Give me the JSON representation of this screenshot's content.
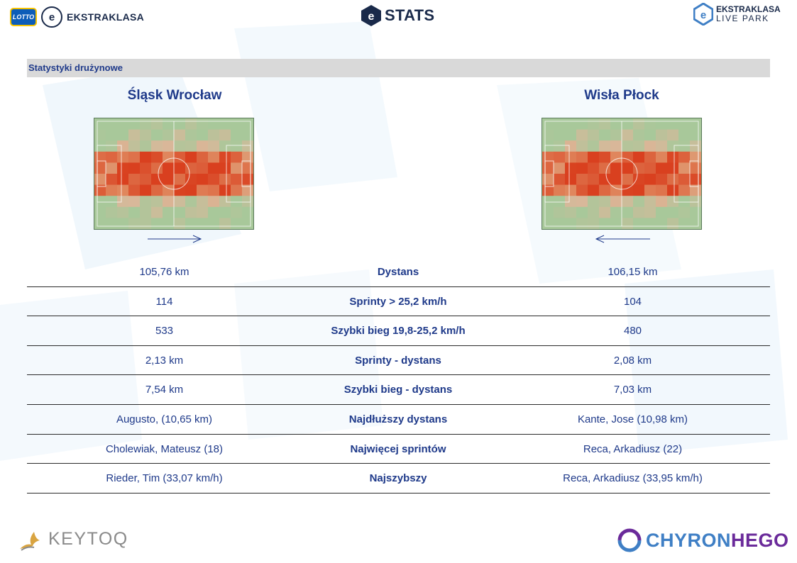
{
  "header": {
    "lotto_text": "LOTTO",
    "ball_letter": "e",
    "left_brand": "EKSTRAKLASA",
    "center_brand": "STATS",
    "right_brand_line1": "EKSTRAKLASA",
    "right_brand_line2": "LIVE PARK"
  },
  "section_title": "Statystyki drużynowe",
  "teams": {
    "home": {
      "name": "Śląsk Wrocław",
      "direction": "right"
    },
    "away": {
      "name": "Wisła Płock",
      "direction": "left"
    }
  },
  "stats": [
    {
      "label": "Dystans",
      "home": "105,76 km",
      "away": "106,15 km"
    },
    {
      "label": "Sprinty > 25,2 km/h",
      "home": "114",
      "away": "104"
    },
    {
      "label": "Szybki bieg 19,8-25,2 km/h",
      "home": "533",
      "away": "480"
    },
    {
      "label": "Sprinty - dystans",
      "home": "2,13 km",
      "away": "2,08 km"
    },
    {
      "label": "Szybki bieg - dystans",
      "home": "7,54 km",
      "away": "7,03 km"
    },
    {
      "label": "Najdłuższy dystans",
      "home": "Augusto,  (10,65 km)",
      "away": "Kante, Jose (10,98 km)"
    },
    {
      "label": "Najwięcej sprintów",
      "home": "Cholewiak, Mateusz (18)",
      "away": "Reca, Arkadiusz (22)"
    },
    {
      "label": "Najszybszy",
      "home": "Rieder, Tim (33,07 km/h)",
      "away": "Reca, Arkadiusz (33,95 km/h)"
    }
  ],
  "footer": {
    "left_brand": "KEYTOQ",
    "right_brand_a": "CHYRON",
    "right_brand_b": "HEGO"
  },
  "colors": {
    "title": "#1f3a8a",
    "pitch": "#a8c89a",
    "heat_low": "#d9b89a",
    "heat_mid": "#e08a60",
    "heat_high": "#d9401f"
  }
}
